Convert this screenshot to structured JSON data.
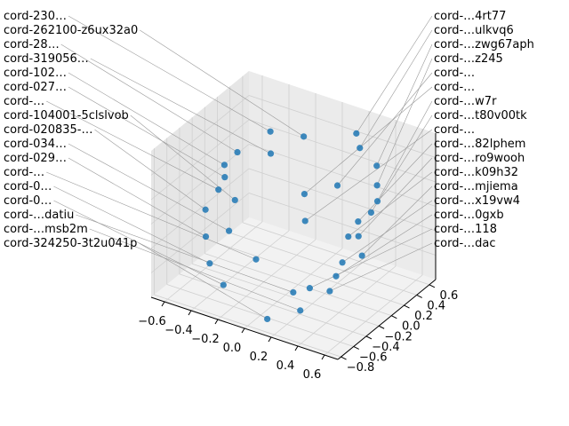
{
  "chart_data": {
    "type": "scatter",
    "projection": "3d",
    "title": "",
    "xlabel": "",
    "ylabel": "",
    "zlabel": "",
    "xlim": [
      -0.7,
      0.7
    ],
    "ylim": [
      -0.85,
      0.7
    ],
    "zlim": [
      -0.6,
      0.6
    ],
    "x_ticks": [
      "−0.6",
      "−0.4",
      "−0.2",
      "0.0",
      "0.2",
      "0.4",
      "0.6"
    ],
    "y_ticks": [
      "−0.8",
      "−0.6",
      "−0.4",
      "−0.2",
      "0.0",
      "0.2",
      "0.4",
      "0.6"
    ],
    "grid": true,
    "marker_color": "#1f77b4",
    "points": [
      {
        "label": "cord-262100-z6ux32a0",
        "x": -0.1,
        "y": 0.3,
        "z": 0.45
      },
      {
        "label": "cord-…4rt77",
        "x": 0.2,
        "y": 0.5,
        "z": 0.5
      },
      {
        "label": "cord-…ulkvq6",
        "x": 0.25,
        "y": 0.45,
        "z": 0.42
      },
      {
        "label": "cord-230…",
        "x": -0.35,
        "y": 0.3,
        "z": 0.4
      },
      {
        "label": "cord-…zwg67aph",
        "x": 0.4,
        "y": 0.4,
        "z": 0.35
      },
      {
        "label": "cord-319056…",
        "x": -0.3,
        "y": 0.2,
        "z": 0.28
      },
      {
        "label": "cord-…z245",
        "x": 0.45,
        "y": 0.3,
        "z": 0.25
      },
      {
        "label": "cord-28…",
        "x": -0.55,
        "y": 0.2,
        "z": 0.2
      },
      {
        "label": "cord-…w7r",
        "x": 0.5,
        "y": 0.2,
        "z": 0.18
      },
      {
        "label": "cord-…t80v00tk",
        "x": 0.5,
        "y": 0.1,
        "z": 0.13
      },
      {
        "label": "cord-102…",
        "x": -0.6,
        "y": 0.1,
        "z": 0.12
      },
      {
        "label": "cord-…82lphem",
        "x": 0.45,
        "y": 0.0,
        "z": 0.08
      },
      {
        "label": "cord-027…",
        "x": -0.55,
        "y": 0.0,
        "z": 0.08
      },
      {
        "label": "cord-…ro9wooh",
        "x": 0.5,
        "y": -0.1,
        "z": 0.02
      },
      {
        "label": "cord-…",
        "x": -0.55,
        "y": -0.1,
        "z": 0.02
      },
      {
        "label": "cord-104001-5clslvob",
        "x": -0.45,
        "y": -0.05,
        "z": -0.05
      },
      {
        "label": "cord-…k09h32",
        "x": 0.4,
        "y": -0.05,
        "z": -0.04
      },
      {
        "label": "cord-…mjiema",
        "x": 0.55,
        "y": -0.15,
        "z": -0.1
      },
      {
        "label": "cord-020835-…",
        "x": -0.6,
        "y": -0.2,
        "z": -0.12
      },
      {
        "label": "cord-…x19vw4",
        "x": 0.45,
        "y": -0.25,
        "z": -0.15
      },
      {
        "label": "cord-034…",
        "x": -0.4,
        "y": -0.25,
        "z": -0.2
      },
      {
        "label": "cord-…0gxb",
        "x": 0.45,
        "y": -0.35,
        "z": -0.22
      },
      {
        "label": "cord-029…",
        "x": -0.55,
        "y": -0.3,
        "z": -0.28
      },
      {
        "label": "cord-…dac",
        "x": 0.45,
        "y": -0.45,
        "z": -0.3
      },
      {
        "label": "cord-…",
        "x": -0.15,
        "y": -0.35,
        "z": -0.3
      },
      {
        "label": "cord-…118",
        "x": 0.3,
        "y": -0.45,
        "z": -0.33
      },
      {
        "label": "cord-0…",
        "x": -0.45,
        "y": -0.45,
        "z": -0.4
      },
      {
        "label": "cord-…datiu",
        "x": 0.2,
        "y": -0.5,
        "z": -0.38
      },
      {
        "label": "cord-…msb2m",
        "x": 0.3,
        "y": -0.6,
        "z": -0.45
      },
      {
        "label": "cord-0…",
        "x": -0.3,
        "y": -0.55,
        "z": -0.48
      },
      {
        "label": "cord-324250-3t2u041p",
        "x": 0.1,
        "y": -0.7,
        "z": -0.55
      },
      {
        "label": "cord-…",
        "x": 0.0,
        "y": 0.1,
        "z": 0.1
      },
      {
        "label": "cord-…",
        "x": 0.1,
        "y": -0.1,
        "z": 0.0
      },
      {
        "label": "cord-…",
        "x": 0.2,
        "y": 0.2,
        "z": 0.2
      }
    ]
  }
}
